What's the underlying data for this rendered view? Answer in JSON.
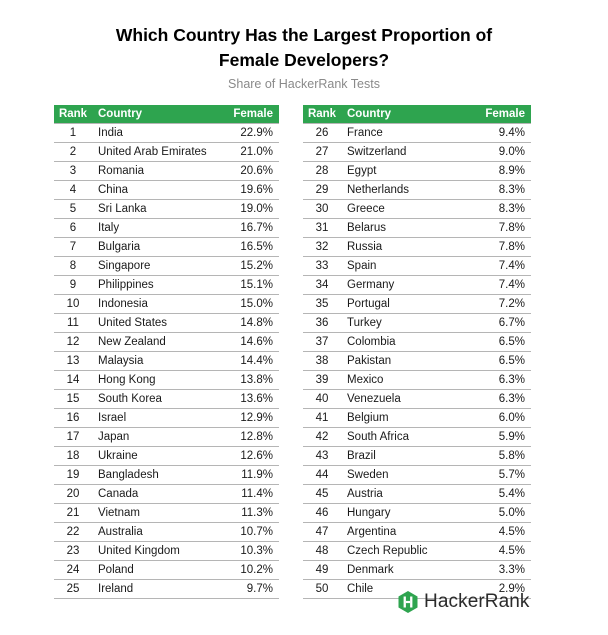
{
  "title_line1": "Which Country Has the Largest Proportion of",
  "title_line2": "Female Developers?",
  "subtitle": "Share of HackerRank Tests",
  "columns": {
    "rank": "Rank",
    "country": "Country",
    "female": "Female"
  },
  "accent_color": "#2ea44f",
  "logo": {
    "icon": "hackerrank-hexagon-icon",
    "text": "HackerRank"
  },
  "chart_data": {
    "type": "table",
    "title": "Which Country Has the Largest Proportion of Female Developers?",
    "subtitle": "Share of HackerRank Tests",
    "columns": [
      "Rank",
      "Country",
      "Female"
    ],
    "rows": [
      {
        "rank": "1",
        "country": "India",
        "female": "22.9%"
      },
      {
        "rank": "2",
        "country": "United Arab Emirates",
        "female": "21.0%"
      },
      {
        "rank": "3",
        "country": "Romania",
        "female": "20.6%"
      },
      {
        "rank": "4",
        "country": "China",
        "female": "19.6%"
      },
      {
        "rank": "5",
        "country": "Sri Lanka",
        "female": "19.0%"
      },
      {
        "rank": "6",
        "country": "Italy",
        "female": "16.7%"
      },
      {
        "rank": "7",
        "country": "Bulgaria",
        "female": "16.5%"
      },
      {
        "rank": "8",
        "country": "Singapore",
        "female": "15.2%"
      },
      {
        "rank": "9",
        "country": "Philippines",
        "female": "15.1%"
      },
      {
        "rank": "10",
        "country": "Indonesia",
        "female": "15.0%"
      },
      {
        "rank": "11",
        "country": "United States",
        "female": "14.8%"
      },
      {
        "rank": "12",
        "country": "New Zealand",
        "female": "14.6%"
      },
      {
        "rank": "13",
        "country": "Malaysia",
        "female": "14.4%"
      },
      {
        "rank": "14",
        "country": "Hong Kong",
        "female": "13.8%"
      },
      {
        "rank": "15",
        "country": "South Korea",
        "female": "13.6%"
      },
      {
        "rank": "16",
        "country": "Israel",
        "female": "12.9%"
      },
      {
        "rank": "17",
        "country": "Japan",
        "female": "12.8%"
      },
      {
        "rank": "18",
        "country": "Ukraine",
        "female": "12.6%"
      },
      {
        "rank": "19",
        "country": "Bangladesh",
        "female": "11.9%"
      },
      {
        "rank": "20",
        "country": "Canada",
        "female": "11.4%"
      },
      {
        "rank": "21",
        "country": "Vietnam",
        "female": "11.3%"
      },
      {
        "rank": "22",
        "country": "Australia",
        "female": "10.7%"
      },
      {
        "rank": "23",
        "country": "United Kingdom",
        "female": "10.3%"
      },
      {
        "rank": "24",
        "country": "Poland",
        "female": "10.2%"
      },
      {
        "rank": "25",
        "country": "Ireland",
        "female": "9.7%"
      },
      {
        "rank": "26",
        "country": "France",
        "female": "9.4%"
      },
      {
        "rank": "27",
        "country": "Switzerland",
        "female": "9.0%"
      },
      {
        "rank": "28",
        "country": "Egypt",
        "female": "8.9%"
      },
      {
        "rank": "29",
        "country": "Netherlands",
        "female": "8.3%"
      },
      {
        "rank": "30",
        "country": "Greece",
        "female": "8.3%"
      },
      {
        "rank": "31",
        "country": "Belarus",
        "female": "7.8%"
      },
      {
        "rank": "32",
        "country": "Russia",
        "female": "7.8%"
      },
      {
        "rank": "33",
        "country": "Spain",
        "female": "7.4%"
      },
      {
        "rank": "34",
        "country": "Germany",
        "female": "7.4%"
      },
      {
        "rank": "35",
        "country": "Portugal",
        "female": "7.2%"
      },
      {
        "rank": "36",
        "country": "Turkey",
        "female": "6.7%"
      },
      {
        "rank": "37",
        "country": "Colombia",
        "female": "6.5%"
      },
      {
        "rank": "38",
        "country": "Pakistan",
        "female": "6.5%"
      },
      {
        "rank": "39",
        "country": "Mexico",
        "female": "6.3%"
      },
      {
        "rank": "40",
        "country": "Venezuela",
        "female": "6.3%"
      },
      {
        "rank": "41",
        "country": "Belgium",
        "female": "6.0%"
      },
      {
        "rank": "42",
        "country": "South Africa",
        "female": "5.9%"
      },
      {
        "rank": "43",
        "country": "Brazil",
        "female": "5.8%"
      },
      {
        "rank": "44",
        "country": "Sweden",
        "female": "5.7%"
      },
      {
        "rank": "45",
        "country": "Austria",
        "female": "5.4%"
      },
      {
        "rank": "46",
        "country": "Hungary",
        "female": "5.0%"
      },
      {
        "rank": "47",
        "country": "Argentina",
        "female": "4.5%"
      },
      {
        "rank": "48",
        "country": "Czech Republic",
        "female": "4.5%"
      },
      {
        "rank": "49",
        "country": "Denmark",
        "female": "3.3%"
      },
      {
        "rank": "50",
        "country": "Chile",
        "female": "2.9%"
      }
    ]
  }
}
